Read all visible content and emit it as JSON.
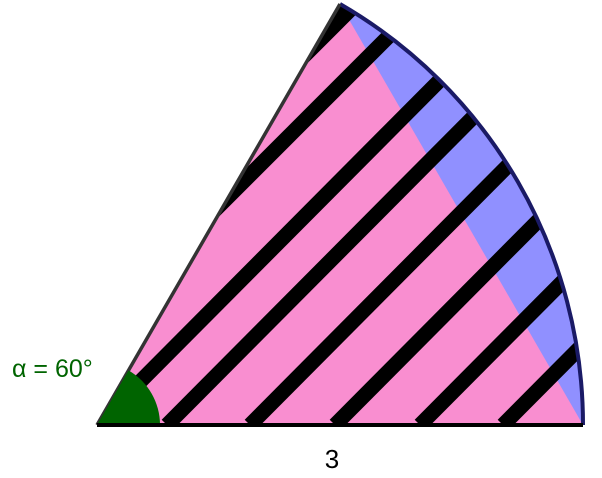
{
  "figure": {
    "angle_label": "α = 60°",
    "radius_label": "3",
    "colors": {
      "sector_fill": "#9090ff",
      "triangle_fill": "#f98ed0",
      "stripe": "#000000",
      "arc_stroke": "#1a1a66",
      "edge_stroke": "#333333",
      "angle_fill": "#006400",
      "angle_text": "#006400"
    }
  }
}
